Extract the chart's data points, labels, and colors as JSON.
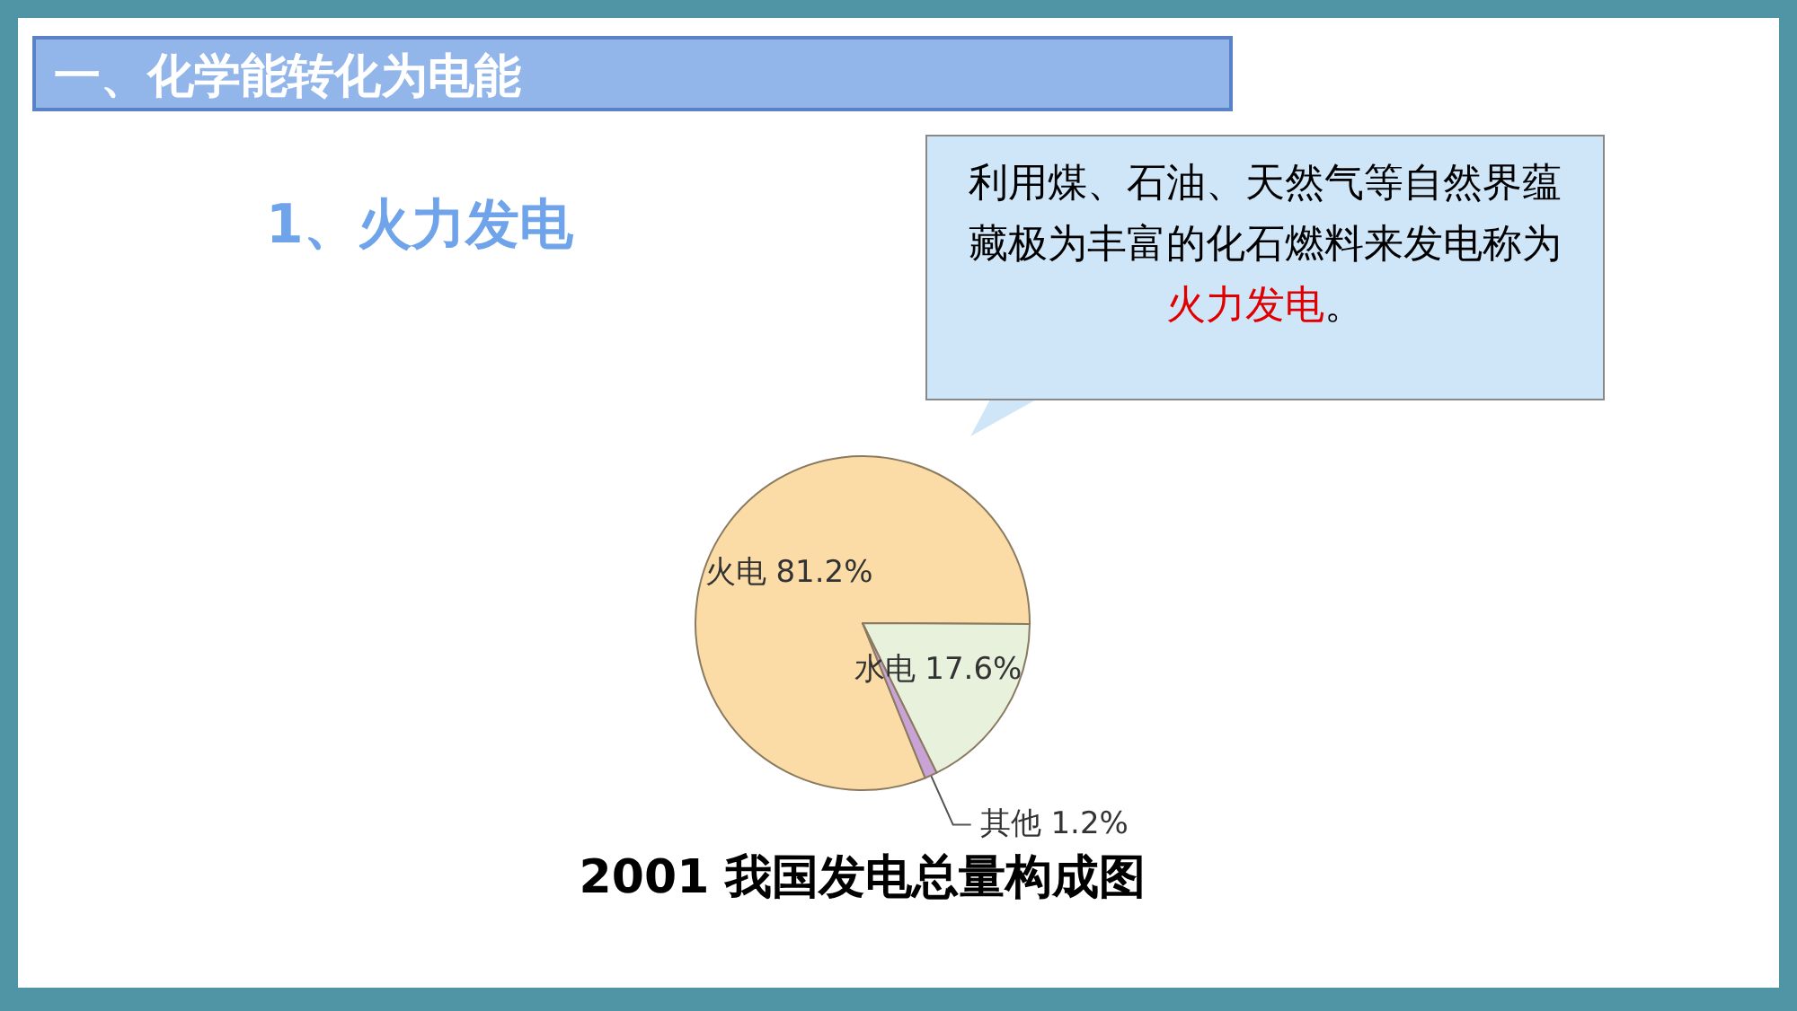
{
  "chart_data": {
    "type": "pie",
    "title": "2001 我国发电总量构成图",
    "categories": [
      "火电",
      "水电",
      "其他"
    ],
    "values": [
      81.2,
      17.6,
      1.2
    ],
    "value_labels": [
      "81.2%",
      "17.6%",
      "1.2%"
    ],
    "colors": [
      "#fbdca6",
      "#e8f1dc",
      "#c9a3d6"
    ],
    "annotations": [
      "一、化学能转化为电能",
      "1、火力发电",
      "利用煤、石油、天然气等自然界蕴藏极为丰富的化石燃料来发电称为",
      "火力发电",
      "。"
    ]
  }
}
